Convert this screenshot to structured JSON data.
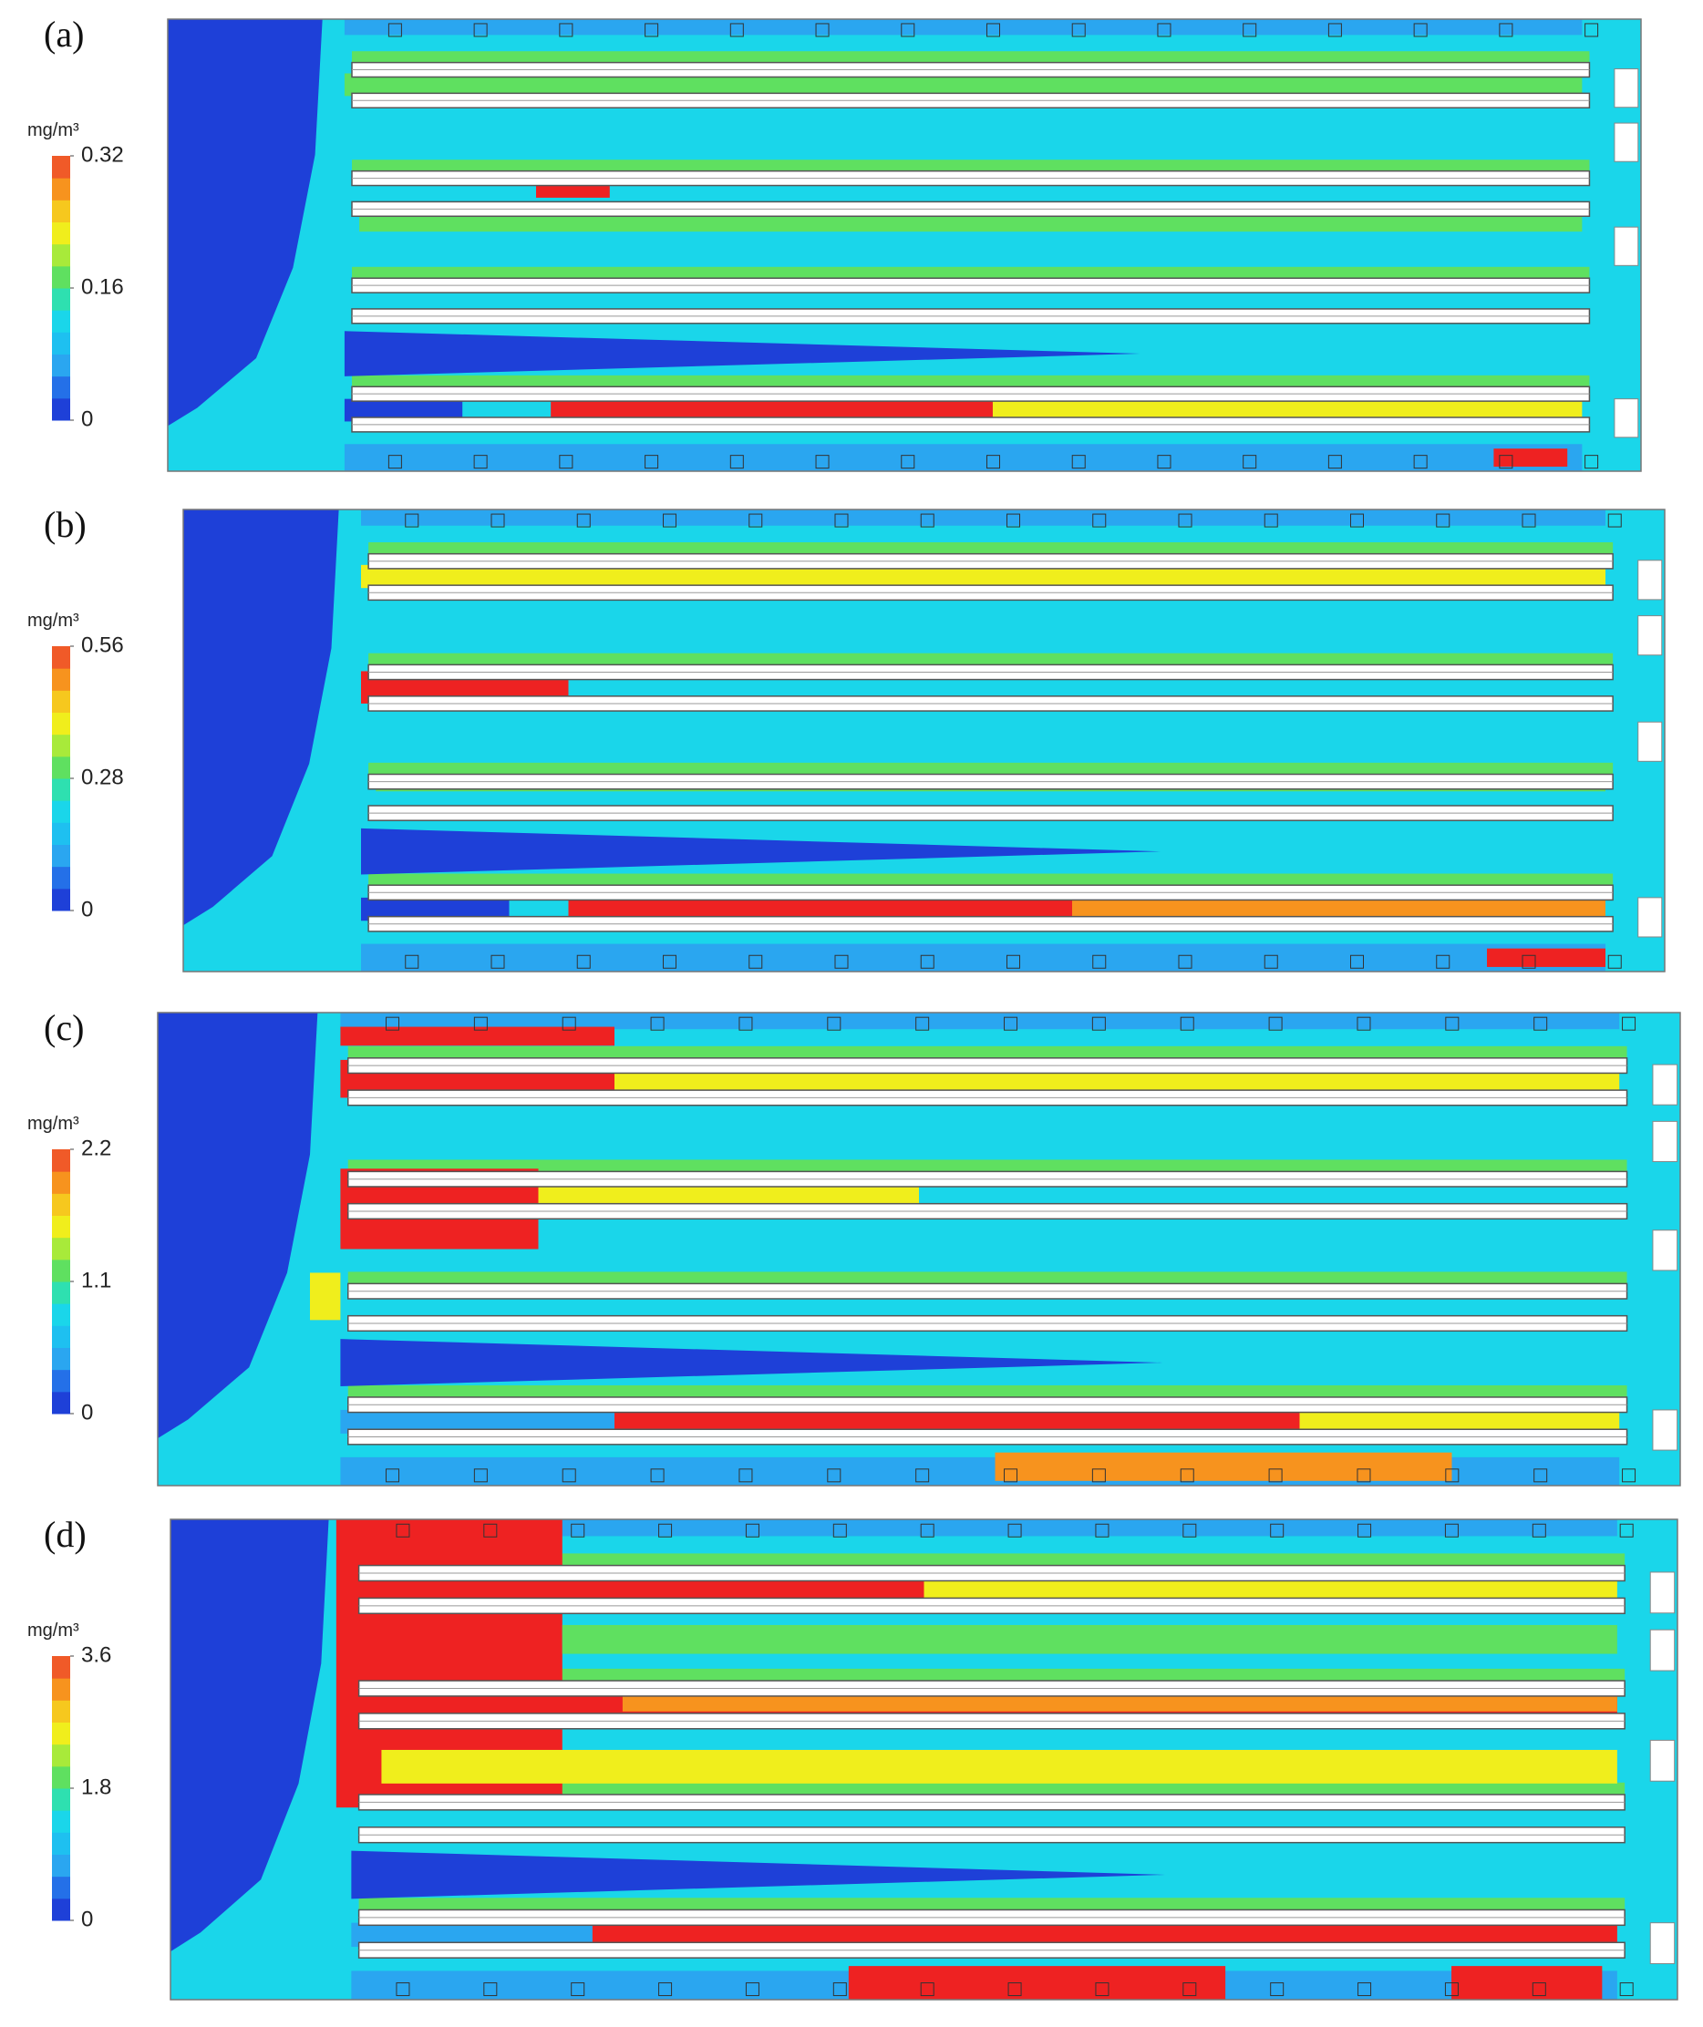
{
  "panels": [
    {
      "label": "(a)",
      "unit": "mg/m³",
      "ticks": [
        0,
        0.16,
        0.32
      ]
    },
    {
      "label": "(b)",
      "unit": "mg/m³",
      "ticks": [
        0,
        0.28,
        0.56
      ]
    },
    {
      "label": "(c)",
      "unit": "mg/m³",
      "ticks": [
        0,
        1.1,
        2.2
      ]
    },
    {
      "label": "(d)",
      "unit": "mg/m³",
      "ticks": [
        0,
        1.8,
        3.6
      ]
    }
  ]
}
